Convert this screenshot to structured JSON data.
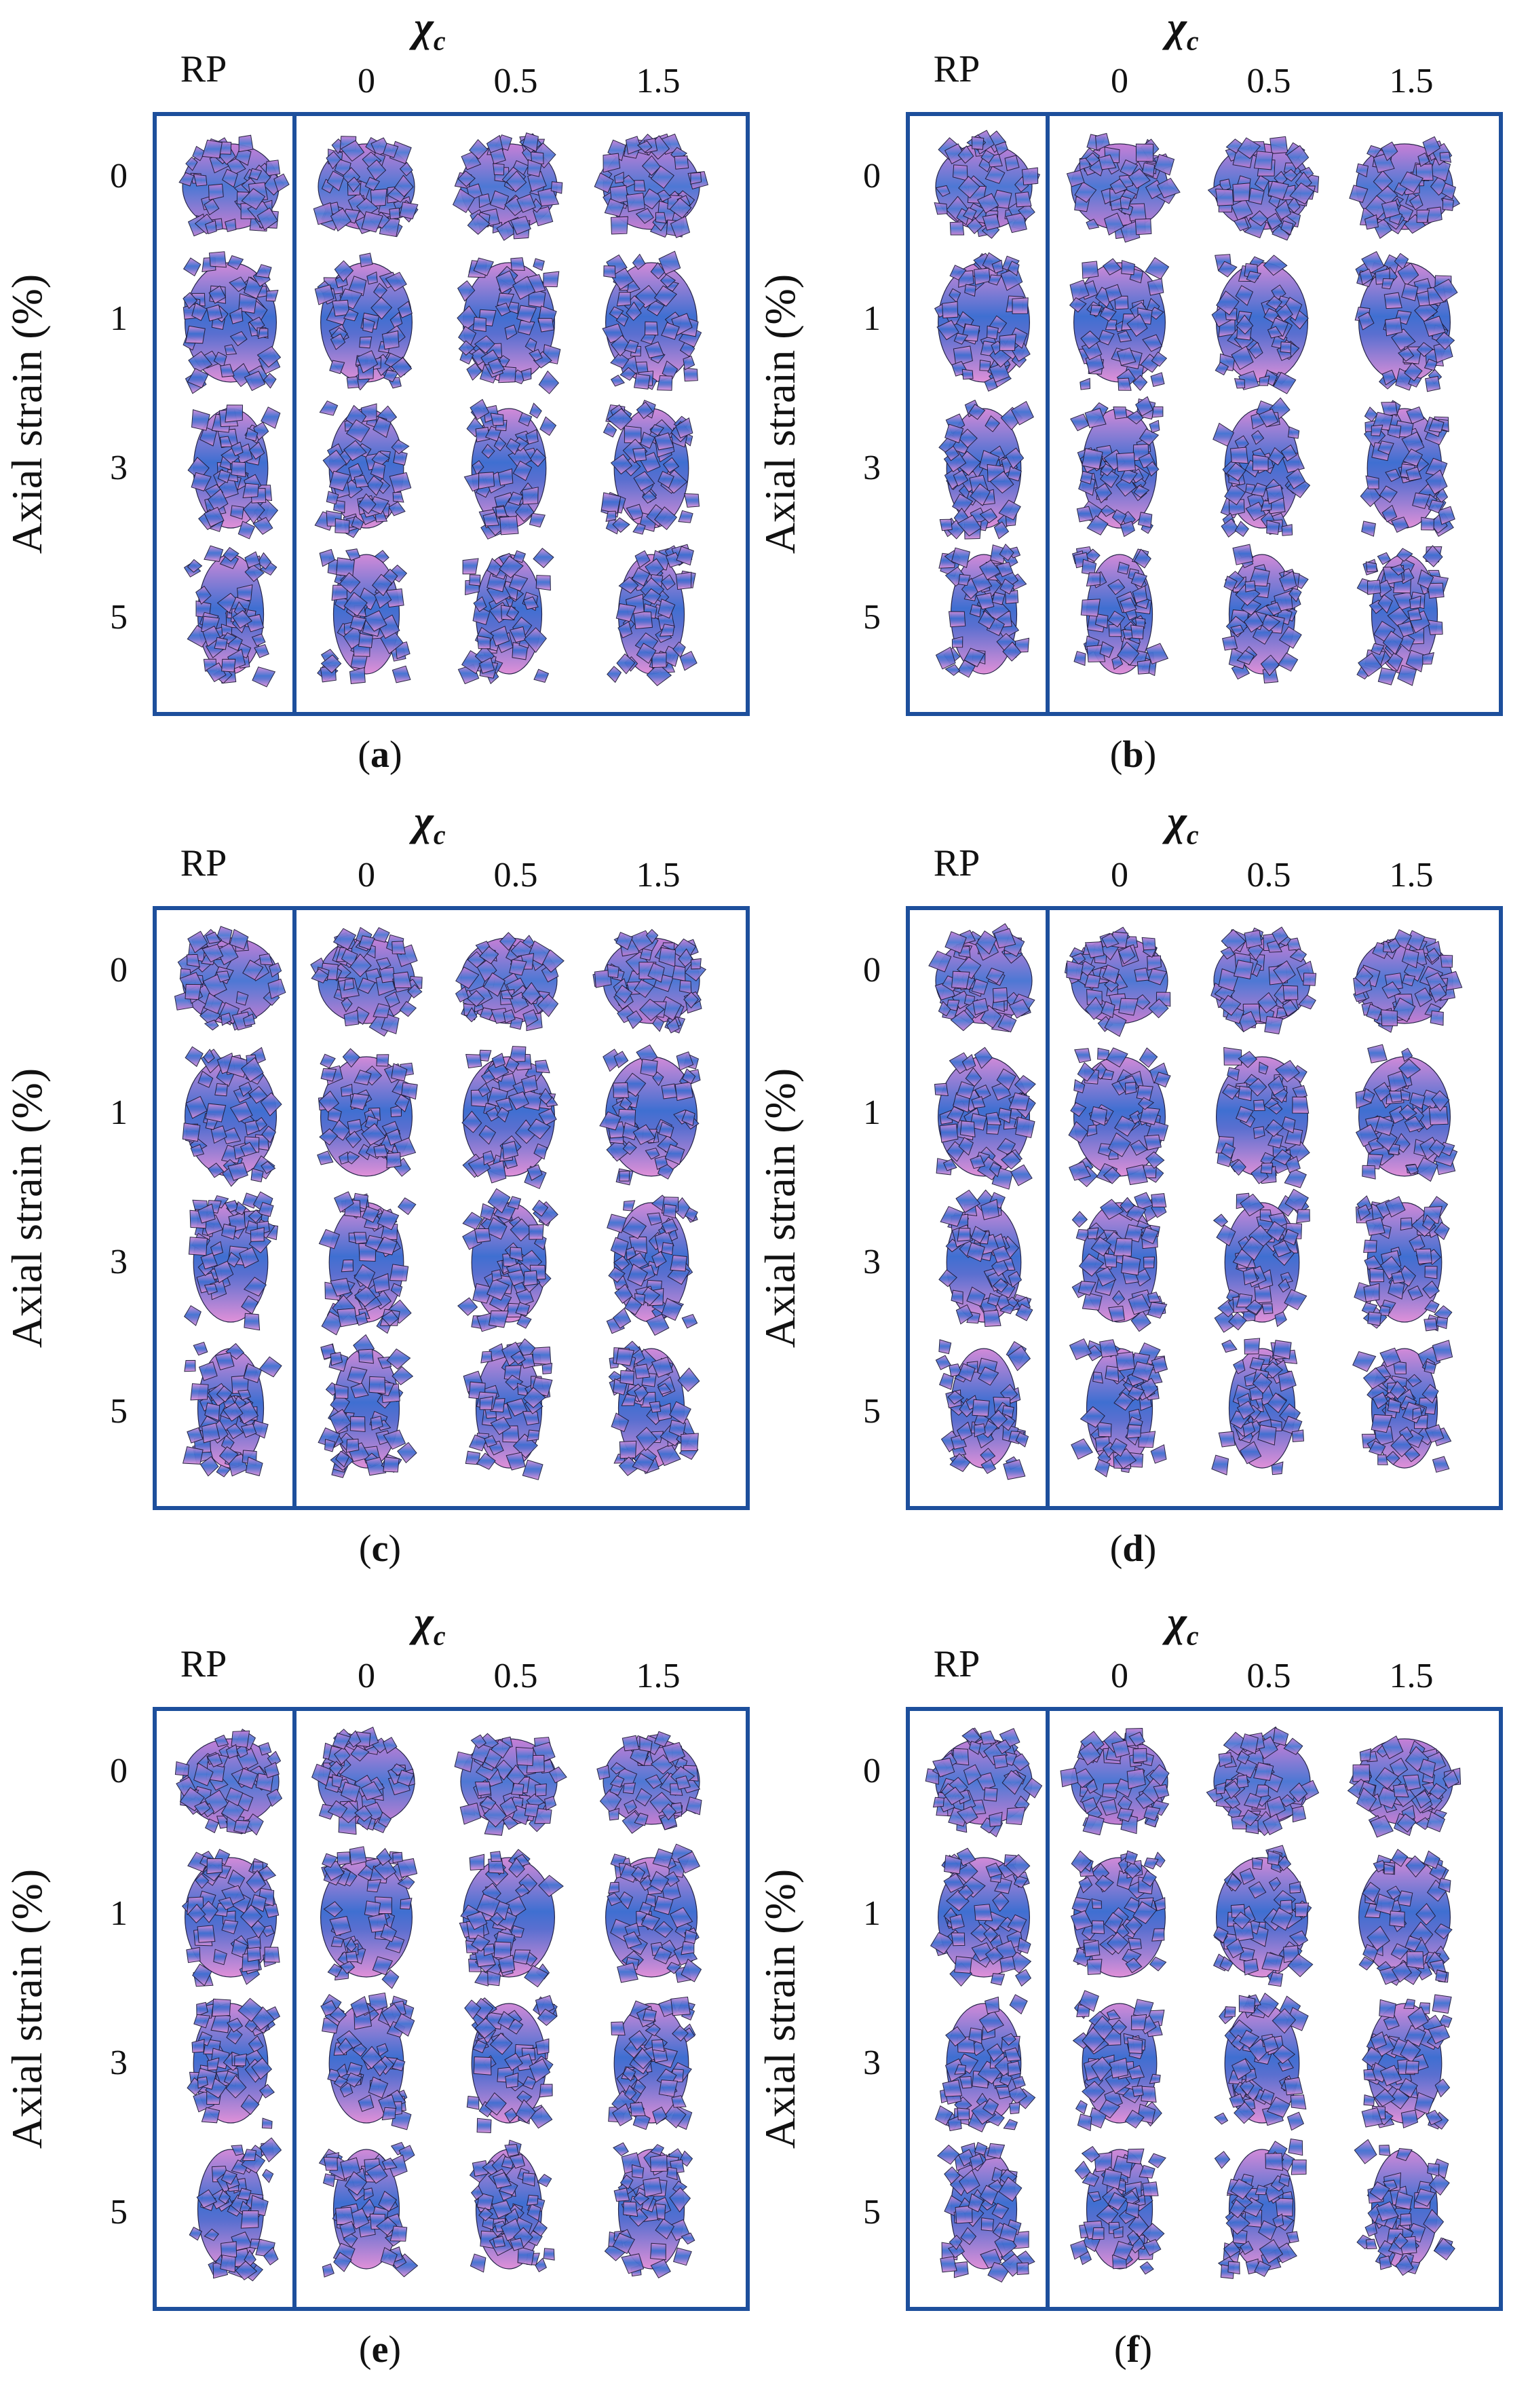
{
  "figure": {
    "x_group_label": "χ",
    "x_group_sub": "c",
    "reference_label": "RP",
    "column_values": [
      "0",
      "0.5",
      "1.5"
    ],
    "row_values": [
      "0",
      "1",
      "3",
      "5"
    ],
    "y_axis_label": "Axial strain (%)",
    "colors": {
      "frame": "#1d4f9c",
      "particle_blue": "#3d6fd0",
      "particle_pink": "#d88ad8"
    }
  },
  "panels": [
    {
      "label": "a"
    },
    {
      "label": "b"
    },
    {
      "label": "c"
    },
    {
      "label": "d"
    },
    {
      "label": "e"
    },
    {
      "label": "f"
    }
  ]
}
